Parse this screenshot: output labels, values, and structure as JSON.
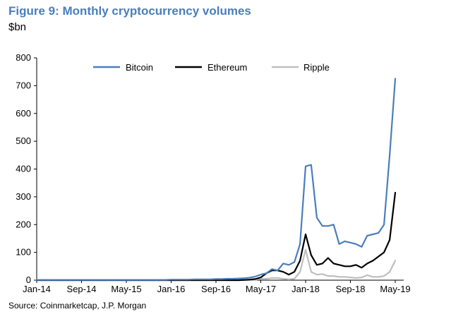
{
  "title": "Figure 9: Monthly cryptocurrency volumes",
  "unit": "$bn",
  "source": "Source:  Coinmarketcap, J.P. Morgan",
  "chart_data": {
    "type": "line",
    "ylim": [
      0,
      800
    ],
    "yticks": [
      0,
      100,
      200,
      300,
      400,
      500,
      600,
      700,
      800
    ],
    "xlim": [
      0,
      64
    ],
    "xtick_labels": [
      "Jan-14",
      "Sep-14",
      "May-15",
      "Jan-16",
      "Sep-16",
      "May-17",
      "Jan-18",
      "Sep-18",
      "May-19"
    ],
    "xtick_positions": [
      0,
      8,
      16,
      24,
      32,
      40,
      48,
      56,
      64
    ],
    "legend_position": "top",
    "grid": false,
    "x": [
      0,
      1,
      2,
      3,
      4,
      5,
      6,
      7,
      8,
      9,
      10,
      11,
      12,
      13,
      14,
      15,
      16,
      17,
      18,
      19,
      20,
      21,
      22,
      23,
      24,
      25,
      26,
      27,
      28,
      29,
      30,
      31,
      32,
      33,
      34,
      35,
      36,
      37,
      38,
      39,
      40,
      41,
      42,
      43,
      44,
      45,
      46,
      47,
      48,
      49,
      50,
      51,
      52,
      53,
      54,
      55,
      56,
      57,
      58,
      59,
      60,
      61,
      62,
      63,
      64
    ],
    "series": [
      {
        "name": "Bitcoin",
        "color": "#4a7ebb",
        "values": [
          1,
          1,
          1,
          1,
          1,
          1,
          1,
          1,
          1,
          1,
          1,
          1,
          1,
          1,
          1,
          1,
          1,
          1,
          1,
          1,
          1,
          1,
          1,
          1,
          2,
          2,
          2,
          2,
          3,
          3,
          3,
          3,
          4,
          4,
          5,
          5,
          6,
          7,
          9,
          13,
          20,
          25,
          40,
          35,
          60,
          55,
          65,
          130,
          410,
          415,
          225,
          195,
          195,
          200,
          130,
          140,
          135,
          130,
          120,
          160,
          165,
          170,
          200,
          450,
          725
        ]
      },
      {
        "name": "Ethereum",
        "color": "#000000",
        "values": [
          0,
          0,
          0,
          0,
          0,
          0,
          0,
          0,
          0,
          0,
          0,
          0,
          0,
          0,
          0,
          0,
          0,
          0,
          0,
          0,
          0,
          0,
          0,
          0,
          0,
          0,
          0,
          0,
          0,
          0,
          0,
          0,
          0,
          0,
          0,
          0,
          0,
          1,
          2,
          4,
          10,
          25,
          35,
          35,
          30,
          20,
          30,
          70,
          165,
          90,
          55,
          60,
          80,
          60,
          55,
          50,
          50,
          55,
          45,
          60,
          70,
          85,
          100,
          145,
          315
        ]
      },
      {
        "name": "Ripple",
        "color": "#bfbfbf",
        "values": [
          0,
          0,
          0,
          0,
          0,
          0,
          0,
          0,
          0,
          0,
          0,
          0,
          0,
          0,
          0,
          0,
          0,
          0,
          0,
          0,
          0,
          0,
          0,
          0,
          0,
          0,
          0,
          0,
          0,
          0,
          0,
          0,
          0,
          0,
          0,
          0,
          0,
          0,
          0,
          1,
          5,
          5,
          8,
          8,
          5,
          3,
          5,
          30,
          110,
          30,
          20,
          22,
          15,
          15,
          12,
          12,
          10,
          8,
          10,
          18,
          12,
          12,
          15,
          30,
          70
        ]
      }
    ]
  }
}
